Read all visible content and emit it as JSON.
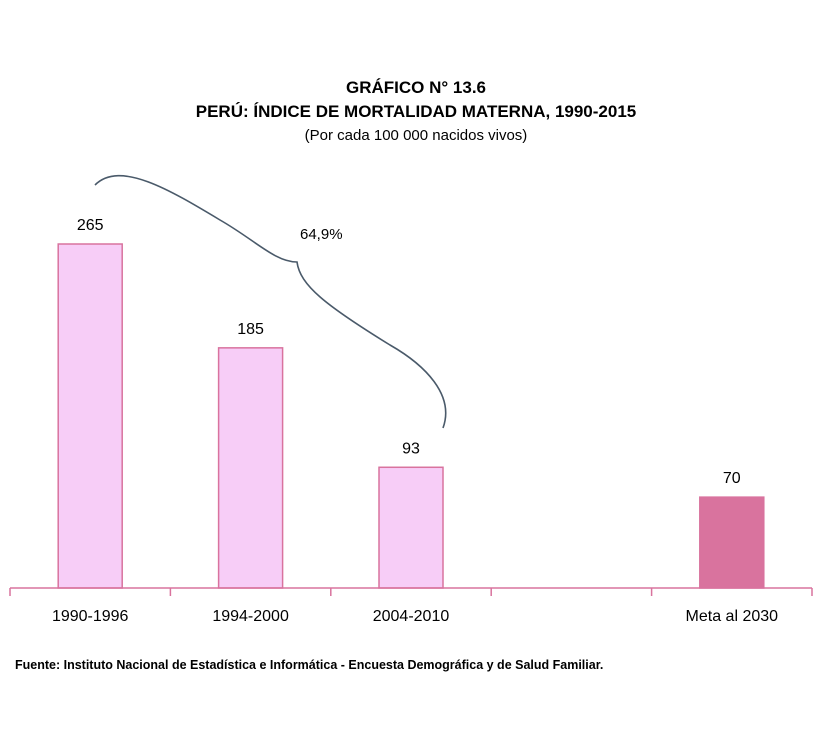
{
  "header": {
    "number": "GRÁFICO N° 13.6",
    "title": "PERÚ: ÍNDICE DE MORTALIDAD MATERNA, 1990-2015",
    "subtitle": "(Por cada 100 000 nacidos vivos)"
  },
  "chart_data": {
    "type": "bar",
    "categories": [
      "1990-1996",
      "1994-2000",
      "2004-2010",
      "",
      "Meta al 2030"
    ],
    "values": [
      265,
      185,
      93,
      null,
      70
    ],
    "colors": [
      "#f7cdf7",
      "#f7cdf7",
      "#f7cdf7",
      null,
      "#d9739e"
    ],
    "bar_border_color": "#d9739e",
    "annotation": "64,9%",
    "grid": false,
    "ylim": [
      0,
      300
    ]
  },
  "footer": {
    "source": "Fuente: Instituto Nacional de Estadística e Informática - Encuesta Demográfica y de Salud Familiar."
  }
}
